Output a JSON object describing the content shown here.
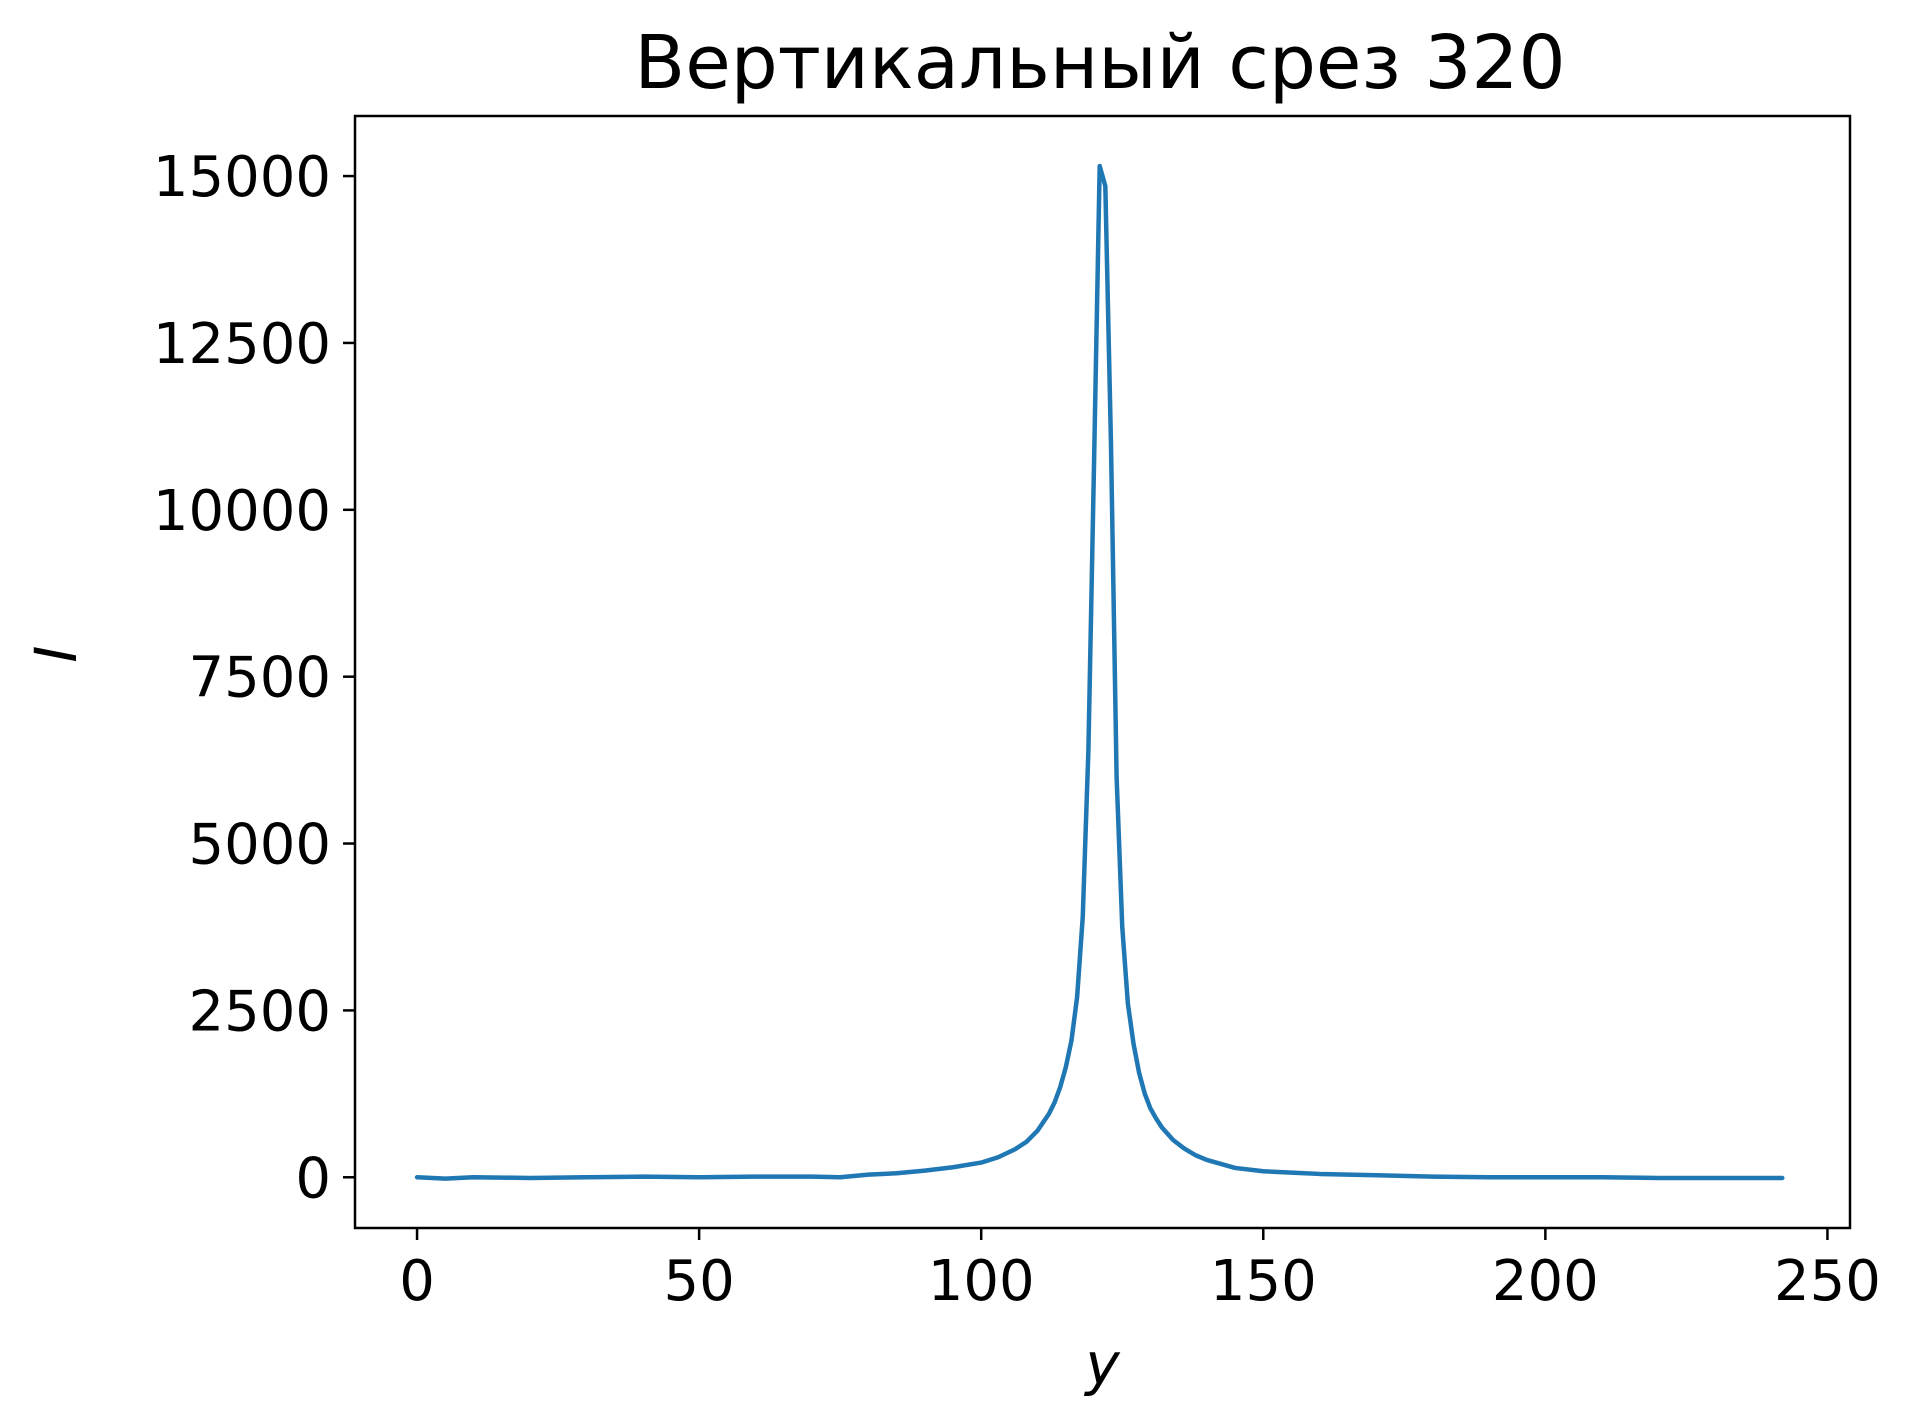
{
  "chart_data": {
    "type": "line",
    "title": "Вертикальный срез 320",
    "xlabel": "y",
    "ylabel": "I",
    "xlim": [
      -11,
      254
    ],
    "ylim": [
      -760,
      15900
    ],
    "xticks": [
      0,
      50,
      100,
      150,
      200,
      250
    ],
    "yticks": [
      0,
      2500,
      5000,
      7500,
      10000,
      12500,
      15000
    ],
    "grid": false,
    "series": [
      {
        "color": "#1f77b4",
        "x": [
          0,
          5,
          10,
          20,
          30,
          40,
          50,
          60,
          70,
          75,
          80,
          85,
          90,
          95,
          100,
          103,
          106,
          108,
          110,
          112,
          113,
          114,
          115,
          116,
          117,
          118,
          119,
          120,
          121,
          122,
          123,
          124,
          125,
          126,
          127,
          128,
          129,
          130,
          131,
          132,
          134,
          136,
          138,
          140,
          145,
          150,
          155,
          160,
          170,
          180,
          190,
          200,
          210,
          220,
          230,
          242
        ],
        "y": [
          0,
          -20,
          0,
          -10,
          0,
          10,
          0,
          10,
          10,
          0,
          40,
          60,
          100,
          150,
          220,
          300,
          420,
          530,
          700,
          950,
          1120,
          1350,
          1650,
          2050,
          2700,
          3900,
          6400,
          10700,
          15150,
          14850,
          11000,
          6000,
          3750,
          2600,
          2000,
          1560,
          1250,
          1030,
          880,
          750,
          560,
          430,
          330,
          260,
          140,
          90,
          70,
          50,
          30,
          10,
          0,
          0,
          0,
          -10,
          -10,
          -10
        ]
      }
    ]
  }
}
